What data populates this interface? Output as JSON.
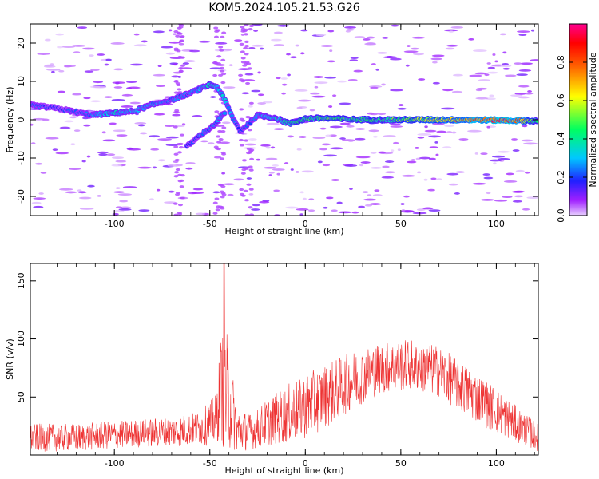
{
  "figure": {
    "title": "KOM5.2024.105.21.53.G26"
  },
  "chart_data": [
    {
      "type": "heatmap",
      "name": "spectrogram",
      "xlabel": "Height of straight line (km)",
      "ylabel": "Frequency (Hz)",
      "xlim": [
        -144,
        122
      ],
      "ylim": [
        -25,
        25
      ],
      "xticks": [
        -100,
        -50,
        0,
        50,
        100
      ],
      "yticks": [
        -20,
        -10,
        0,
        10,
        20
      ],
      "colorbar": {
        "label": "Normalized spectral amplitude",
        "range": [
          0.0,
          1.0
        ],
        "ticks": [
          "0.0",
          "0.2",
          "0.4",
          "0.6",
          "0.8"
        ],
        "colormap": "rainbow"
      },
      "main_trace": [
        {
          "x": -144,
          "f": 3.8,
          "a": 0.25
        },
        {
          "x": -130,
          "f": 3.0,
          "a": 0.2
        },
        {
          "x": -112,
          "f": 1.2,
          "a": 0.25
        },
        {
          "x": -100,
          "f": 1.8,
          "a": 0.35
        },
        {
          "x": -90,
          "f": 2.2,
          "a": 0.3
        },
        {
          "x": -80,
          "f": 4.0,
          "a": 0.3
        },
        {
          "x": -70,
          "f": 5.2,
          "a": 0.25
        },
        {
          "x": -60,
          "f": 7.0,
          "a": 0.25
        },
        {
          "x": -50,
          "f": 9.2,
          "a": 0.35
        },
        {
          "x": -46,
          "f": 8.5,
          "a": 0.3
        },
        {
          "x": -42,
          "f": 5.0,
          "a": 0.35
        },
        {
          "x": -38,
          "f": 0.5,
          "a": 0.25
        },
        {
          "x": -34,
          "f": -3.0,
          "a": 0.2
        },
        {
          "x": -25,
          "f": 1.2,
          "a": 0.3
        },
        {
          "x": -16,
          "f": 0.5,
          "a": 0.35
        },
        {
          "x": -8,
          "f": -1.0,
          "a": 0.4
        },
        {
          "x": 0,
          "f": 0.3,
          "a": 0.45
        },
        {
          "x": 10,
          "f": 0.4,
          "a": 0.5
        },
        {
          "x": 25,
          "f": 0.1,
          "a": 0.45
        },
        {
          "x": 40,
          "f": 0.0,
          "a": 0.45
        },
        {
          "x": 55,
          "f": 0.0,
          "a": 0.55
        },
        {
          "x": 70,
          "f": 0.0,
          "a": 0.65
        },
        {
          "x": 85,
          "f": 0.0,
          "a": 0.75
        },
        {
          "x": 100,
          "f": -0.1,
          "a": 0.92
        },
        {
          "x": 110,
          "f": -0.2,
          "a": 0.85
        },
        {
          "x": 122,
          "f": -0.3,
          "a": 0.4
        }
      ],
      "branch_trace": [
        {
          "x": -62,
          "f": -7.0,
          "a": 0.2
        },
        {
          "x": -55,
          "f": -4.0,
          "a": 0.25
        },
        {
          "x": -48,
          "f": -1.5,
          "a": 0.25
        },
        {
          "x": -42,
          "f": 2.0,
          "a": 0.3
        }
      ]
    },
    {
      "type": "line",
      "name": "snr",
      "xlabel": "Height of straight line (km)",
      "ylabel": "SNR (v/v)",
      "xlim": [
        -144,
        122
      ],
      "ylim": [
        0,
        165
      ],
      "xticks": [
        -100,
        -50,
        0,
        50,
        100
      ],
      "yticks": [
        50,
        100,
        150
      ],
      "color": "#ee3333",
      "envelope": [
        {
          "x": -144,
          "mean": 15,
          "amp": 12
        },
        {
          "x": -120,
          "mean": 15,
          "amp": 12
        },
        {
          "x": -95,
          "mean": 18,
          "amp": 12
        },
        {
          "x": -70,
          "mean": 20,
          "amp": 13
        },
        {
          "x": -55,
          "mean": 23,
          "amp": 15
        },
        {
          "x": -47,
          "mean": 30,
          "amp": 22
        },
        {
          "x": -44,
          "mean": 60,
          "amp": 45
        },
        {
          "x": -42,
          "mean": 55,
          "amp": 60
        },
        {
          "x": -39,
          "mean": 45,
          "amp": 40
        },
        {
          "x": -36,
          "mean": 22,
          "amp": 20
        },
        {
          "x": -28,
          "mean": 20,
          "amp": 15
        },
        {
          "x": -20,
          "mean": 28,
          "amp": 20
        },
        {
          "x": -10,
          "mean": 35,
          "amp": 25
        },
        {
          "x": 0,
          "mean": 42,
          "amp": 28
        },
        {
          "x": 10,
          "mean": 50,
          "amp": 28
        },
        {
          "x": 25,
          "mean": 65,
          "amp": 25
        },
        {
          "x": 40,
          "mean": 75,
          "amp": 22
        },
        {
          "x": 55,
          "mean": 78,
          "amp": 22
        },
        {
          "x": 70,
          "mean": 72,
          "amp": 22
        },
        {
          "x": 85,
          "mean": 55,
          "amp": 22
        },
        {
          "x": 100,
          "mean": 38,
          "amp": 20
        },
        {
          "x": 112,
          "mean": 25,
          "amp": 15
        },
        {
          "x": 122,
          "mean": 15,
          "amp": 12
        }
      ]
    }
  ]
}
